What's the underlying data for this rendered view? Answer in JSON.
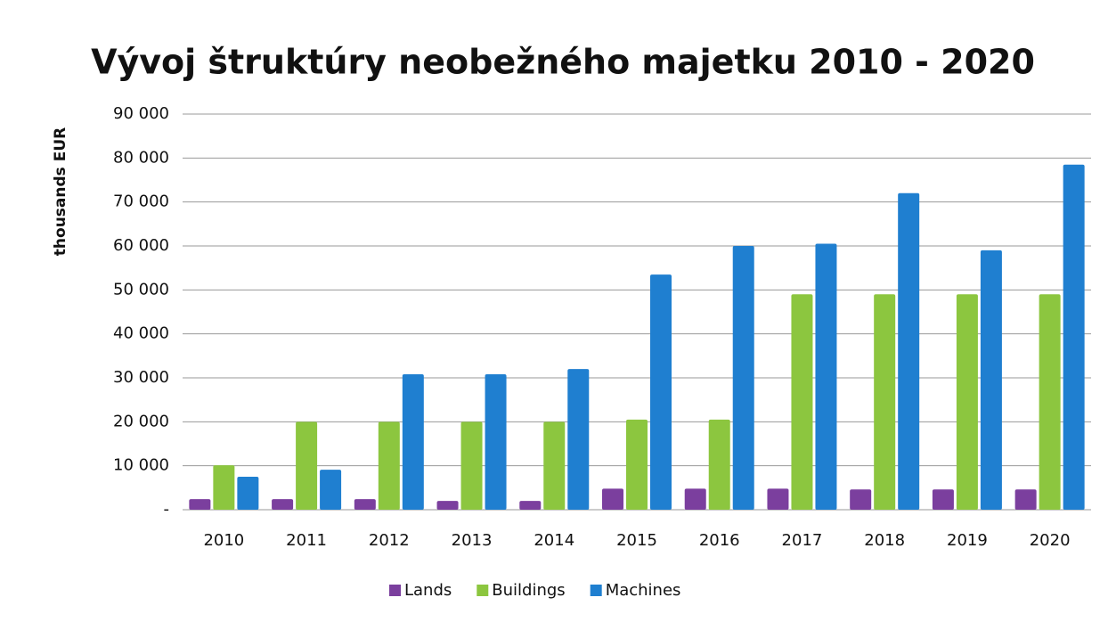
{
  "chart_data": {
    "type": "bar",
    "title": "Vývoj štruktúry neobežného majetku 2010 - 2020",
    "y_label": "thousands EUR",
    "categories": [
      "2010",
      "2011",
      "2012",
      "2013",
      "2014",
      "2015",
      "2016",
      "2017",
      "2018",
      "2019",
      "2020"
    ],
    "series": [
      {
        "name": "Lands",
        "color": "#7b3f9e",
        "values": [
          2400,
          2400,
          2400,
          2000,
          2000,
          4800,
          4800,
          4800,
          4600,
          4600,
          4600
        ]
      },
      {
        "name": "Buildings",
        "color": "#8cc63f",
        "values": [
          10100,
          20000,
          20000,
          20000,
          20000,
          20500,
          20500,
          49000,
          49000,
          49000,
          49000
        ]
      },
      {
        "name": "Machines",
        "color": "#1f7fd0",
        "values": [
          7500,
          9100,
          30800,
          30800,
          32000,
          53500,
          60000,
          60500,
          72000,
          59000,
          78500
        ]
      }
    ],
    "ylim": [
      0,
      90000
    ],
    "yticks": [
      {
        "value": 0,
        "label": "-"
      },
      {
        "value": 10000,
        "label": "10 000"
      },
      {
        "value": 20000,
        "label": "20 000"
      },
      {
        "value": 30000,
        "label": "30 000"
      },
      {
        "value": 40000,
        "label": "40 000"
      },
      {
        "value": 50000,
        "label": "50 000"
      },
      {
        "value": 60000,
        "label": "60 000"
      },
      {
        "value": 70000,
        "label": "70 000"
      },
      {
        "value": 80000,
        "label": "80 000"
      },
      {
        "value": 90000,
        "label": "90 000"
      }
    ],
    "grid": true,
    "legend": "bottom"
  }
}
